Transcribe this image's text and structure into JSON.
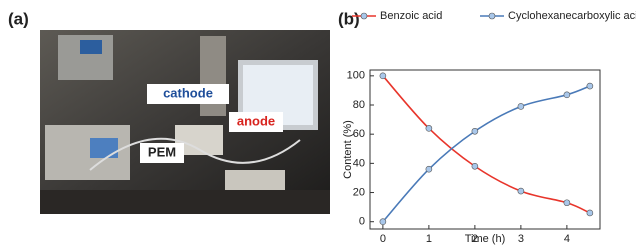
{
  "panel_a": {
    "label": "(a)",
    "photo_labels": {
      "cathode": "cathode",
      "anode": "anode",
      "pem": "PEM"
    }
  },
  "panel_b": {
    "label": "(b)"
  },
  "chart_data": {
    "type": "line",
    "x_label": "Time (h)",
    "y_label": "Content (%)",
    "x": [
      0,
      1,
      2,
      3,
      4,
      4.5
    ],
    "series": [
      {
        "name": "Benzoic acid",
        "color": "#e8352b",
        "values": [
          100,
          64,
          38,
          21,
          13,
          6
        ]
      },
      {
        "name": "Cyclohexanecarboxylic acid",
        "color": "#4a7ab8",
        "values": [
          0,
          36,
          62,
          79,
          87,
          93
        ]
      }
    ],
    "xlim": [
      -0.28,
      4.72
    ],
    "ylim": [
      -5,
      104
    ],
    "xticks": [
      0,
      1,
      2,
      3,
      4
    ],
    "yticks": [
      0,
      20,
      40,
      60,
      80,
      100
    ],
    "marker_fill": "#a9c7ea"
  }
}
